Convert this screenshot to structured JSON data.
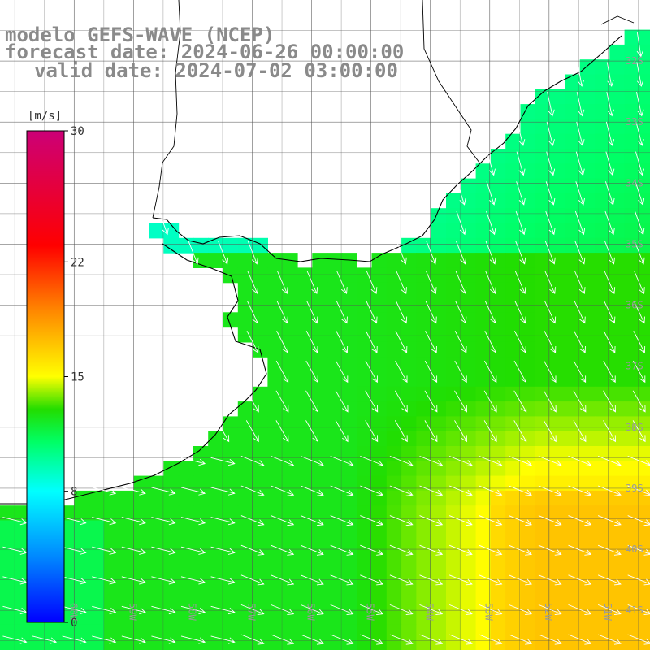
{
  "title": {
    "model": "modelo GEFS-WAVE (NCEP)",
    "forecast": "forecast date: 2024-06-26 00:00:00",
    "valid": "valid date: 2024-07-02 03:00:00"
  },
  "colorbar": {
    "unit": "[m/s]",
    "ticks": [
      {
        "value": 30,
        "label": "30"
      },
      {
        "value": 22,
        "label": "22"
      },
      {
        "value": 15,
        "label": "15"
      },
      {
        "value": 8,
        "label": "8"
      },
      {
        "value": 0,
        "label": "0"
      }
    ],
    "range": [
      0,
      30
    ],
    "colors": [
      "#0000ff",
      "#0088ff",
      "#00ffff",
      "#00ff66",
      "#22dd00",
      "#ffff00",
      "#ff8800",
      "#ff0000",
      "#cc0077"
    ]
  },
  "lat_labels": [
    "32S",
    "33S",
    "34S",
    "35S",
    "36S",
    "37S",
    "38S",
    "39S",
    "40S",
    "41S"
  ],
  "lon_labels": [
    "60W",
    "59W",
    "58W",
    "57W",
    "56W",
    "55W",
    "54W",
    "53W",
    "52W",
    "51W"
  ],
  "field": {
    "variable": "wind speed",
    "unit": "m/s",
    "vector": "wind direction arrows"
  }
}
